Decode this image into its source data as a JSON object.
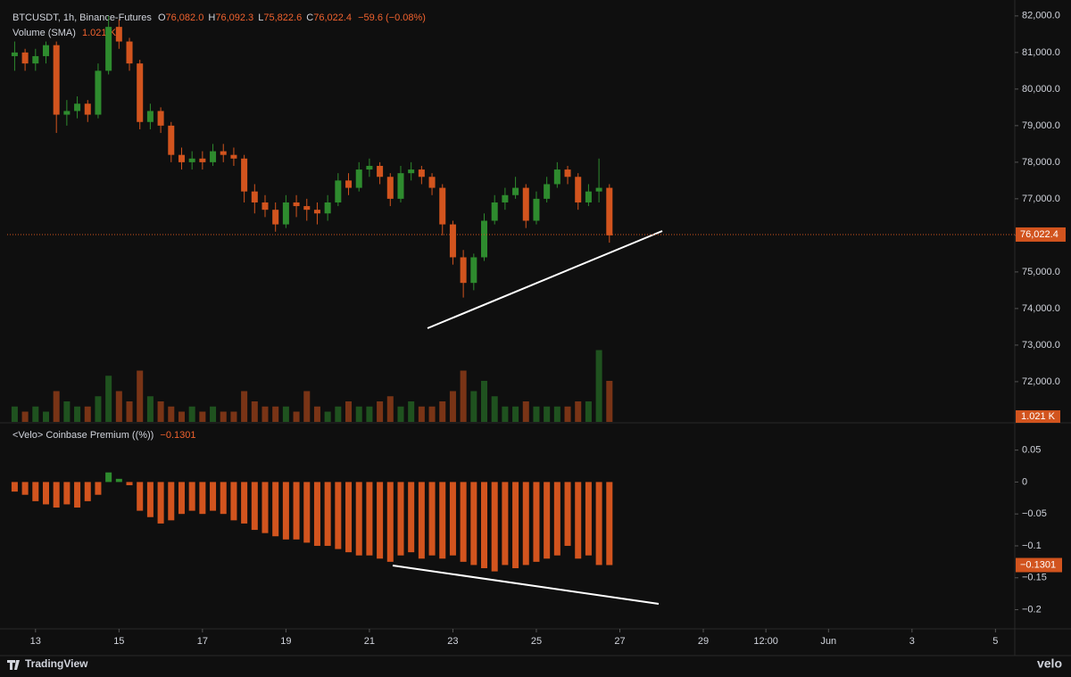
{
  "chart_data": [
    {
      "type": "candlestick",
      "title": "BTCUSDT, 1h, Binance-Futures",
      "legend": [
        [
          "O",
          "76,082.0"
        ],
        [
          "H",
          "76,092.3"
        ],
        [
          "L",
          "75,822.6"
        ],
        [
          "C",
          "76,022.4"
        ]
      ],
      "change": "−59.6 (−0.08%)",
      "up_color": "#2e8b2e",
      "down_color": "#d2541e",
      "last_price": {
        "value": 76022.4,
        "label": "76,022.4"
      },
      "xlim": [
        12.32,
        36.42
      ],
      "xticks": [
        13,
        15,
        17,
        19,
        21,
        23,
        25,
        27,
        29,
        {
          "value": 30.5,
          "label": "12:00"
        },
        {
          "value": 32,
          "label": "Jun"
        },
        {
          "value": 34,
          "label": "3"
        },
        {
          "value": 36,
          "label": "5"
        }
      ],
      "ylim": [
        70900,
        82240
      ],
      "yticks": [
        {
          "value": 72000,
          "label": "72,000.0"
        },
        {
          "value": 73000,
          "label": "73,000.0"
        },
        {
          "value": 74000,
          "label": "74,000.0"
        },
        {
          "value": 75000,
          "label": "75,000.0"
        },
        {
          "value": 76000,
          "label": "76,000.0"
        },
        {
          "value": 77000,
          "label": "77,000.0"
        },
        {
          "value": 78000,
          "label": "78,000.0"
        },
        {
          "value": 79000,
          "label": "79,000.0"
        },
        {
          "value": 80000,
          "label": "80,000.0"
        },
        {
          "value": 81000,
          "label": "81,000.0"
        },
        {
          "value": 82000,
          "label": "82,000.0"
        }
      ],
      "x": [
        12.5,
        12.75,
        13,
        13.25,
        13.5,
        13.75,
        14,
        14.25,
        14.5,
        14.75,
        15,
        15.25,
        15.5,
        15.75,
        16,
        16.25,
        16.5,
        16.75,
        17,
        17.25,
        17.5,
        17.75,
        18,
        18.25,
        18.5,
        18.75,
        19,
        19.25,
        19.5,
        19.75,
        20,
        20.25,
        20.5,
        20.75,
        21,
        21.25,
        21.5,
        21.75,
        22,
        22.25,
        22.5,
        22.75,
        23,
        23.25,
        23.5,
        23.75,
        24,
        24.25,
        24.5,
        24.75,
        25,
        25.25,
        25.5,
        25.75,
        26,
        26.25,
        26.5,
        26.75
      ],
      "open": [
        80900,
        81000,
        80700,
        80900,
        81200,
        79300,
        79400,
        79600,
        79300,
        80500,
        81700,
        81300,
        80700,
        79100,
        79400,
        79000,
        78200,
        78000,
        78100,
        78000,
        78300,
        78200,
        78100,
        77200,
        76900,
        76700,
        76300,
        76900,
        76800,
        76700,
        76600,
        76900,
        77500,
        77300,
        77800,
        77900,
        77600,
        77000,
        77700,
        77800,
        77600,
        77300,
        76300,
        75400,
        74700,
        75400,
        76400,
        76900,
        77100,
        77300,
        76400,
        77000,
        77400,
        77800,
        77600,
        76900,
        77200,
        77300
      ],
      "high": [
        81300,
        81100,
        81100,
        81300,
        81300,
        79700,
        79800,
        79700,
        80700,
        82000,
        81900,
        81400,
        80800,
        79600,
        79500,
        79100,
        78400,
        78300,
        78300,
        78500,
        78500,
        78400,
        78200,
        77400,
        77100,
        76900,
        77100,
        77100,
        77000,
        76900,
        77100,
        77700,
        77700,
        78000,
        78100,
        78000,
        77700,
        77900,
        78000,
        77900,
        77700,
        77400,
        76400,
        75600,
        75500,
        76600,
        77100,
        77300,
        77600,
        77400,
        77200,
        77600,
        78000,
        77900,
        77700,
        77400,
        78100,
        77400
      ],
      "low": [
        80500,
        80500,
        80500,
        80700,
        78800,
        79000,
        79200,
        79100,
        79200,
        80400,
        81100,
        80500,
        78900,
        78900,
        78800,
        78000,
        77800,
        77800,
        77800,
        77900,
        78000,
        77900,
        76900,
        76600,
        76500,
        76100,
        76200,
        76500,
        76400,
        76300,
        76400,
        76800,
        77100,
        77200,
        77600,
        77400,
        76800,
        76900,
        77500,
        77400,
        77100,
        76000,
        75200,
        74300,
        74500,
        75300,
        76300,
        76700,
        77000,
        76200,
        76300,
        76900,
        77300,
        77400,
        76700,
        76800,
        76900,
        75800
      ],
      "close": [
        81000,
        80700,
        80900,
        81200,
        79300,
        79400,
        79600,
        79300,
        80500,
        81700,
        81300,
        80700,
        79100,
        79400,
        79000,
        78200,
        78000,
        78100,
        78000,
        78300,
        78200,
        78100,
        77200,
        76900,
        76700,
        76300,
        76900,
        76800,
        76700,
        76600,
        76900,
        77500,
        77300,
        77800,
        77900,
        77600,
        77000,
        77700,
        77800,
        77600,
        77300,
        76300,
        75400,
        74700,
        75400,
        76400,
        76900,
        77100,
        77300,
        76400,
        77000,
        77400,
        77800,
        77600,
        76900,
        77200,
        77300,
        76000
      ]
    },
    {
      "type": "bar",
      "title": "Volume (SMA)",
      "last_label": "1.021 K",
      "ylim": [
        0,
        20
      ],
      "x": [
        12.5,
        12.75,
        13,
        13.25,
        13.5,
        13.75,
        14,
        14.25,
        14.5,
        14.75,
        15,
        15.25,
        15.5,
        15.75,
        16,
        16.25,
        16.5,
        16.75,
        17,
        17.25,
        17.5,
        17.75,
        18,
        18.25,
        18.5,
        18.75,
        19,
        19.25,
        19.5,
        19.75,
        20,
        20.25,
        20.5,
        20.75,
        21,
        21.25,
        21.5,
        21.75,
        22,
        22.25,
        22.5,
        22.75,
        23,
        23.25,
        23.5,
        23.75,
        24,
        24.25,
        24.5,
        24.75,
        25,
        25.25,
        25.5,
        25.75,
        26,
        26.25,
        26.5,
        26.75
      ],
      "values": [
        3,
        2,
        3,
        2,
        6,
        4,
        3,
        3,
        5,
        9,
        6,
        4,
        10,
        5,
        4,
        3,
        2,
        3,
        2,
        3,
        2,
        2,
        6,
        4,
        3,
        3,
        3,
        2,
        6,
        3,
        2,
        3,
        4,
        3,
        3,
        4,
        5,
        3,
        4,
        3,
        3,
        4,
        6,
        10,
        6,
        8,
        5,
        3,
        3,
        4,
        3,
        3,
        3,
        3,
        4,
        4,
        14,
        8
      ]
    },
    {
      "type": "bar",
      "title": "<Velo> Coinbase Premium ((%))",
      "last": {
        "value": -0.1301,
        "label": "−0.1301"
      },
      "up_color": "#2e8b2e",
      "down_color": "#d2541e",
      "ylim": [
        -0.23,
        0.09
      ],
      "yticks": [
        0.05,
        0,
        {
          "value": -0.05,
          "label": "−0.05"
        },
        {
          "value": -0.1,
          "label": "−0.1"
        },
        {
          "value": -0.15,
          "label": "−0.15"
        },
        {
          "value": -0.2,
          "label": "−0.2"
        }
      ],
      "x": [
        12.5,
        12.75,
        13,
        13.25,
        13.5,
        13.75,
        14,
        14.25,
        14.5,
        14.75,
        15,
        15.25,
        15.5,
        15.75,
        16,
        16.25,
        16.5,
        16.75,
        17,
        17.25,
        17.5,
        17.75,
        18,
        18.25,
        18.5,
        18.75,
        19,
        19.25,
        19.5,
        19.75,
        20,
        20.25,
        20.5,
        20.75,
        21,
        21.25,
        21.5,
        21.75,
        22,
        22.25,
        22.5,
        22.75,
        23,
        23.25,
        23.5,
        23.75,
        24,
        24.25,
        24.5,
        24.75,
        25,
        25.25,
        25.5,
        25.75,
        26,
        26.25,
        26.5,
        26.75
      ],
      "values": [
        -0.015,
        -0.02,
        -0.03,
        -0.035,
        -0.04,
        -0.035,
        -0.04,
        -0.03,
        -0.02,
        0.015,
        0.005,
        -0.005,
        -0.045,
        -0.055,
        -0.065,
        -0.06,
        -0.05,
        -0.045,
        -0.05,
        -0.045,
        -0.05,
        -0.06,
        -0.065,
        -0.075,
        -0.08,
        -0.085,
        -0.09,
        -0.09,
        -0.095,
        -0.1,
        -0.1,
        -0.105,
        -0.11,
        -0.115,
        -0.115,
        -0.12,
        -0.125,
        -0.115,
        -0.11,
        -0.12,
        -0.115,
        -0.12,
        -0.115,
        -0.125,
        -0.13,
        -0.135,
        -0.14,
        -0.13,
        -0.135,
        -0.13,
        -0.125,
        -0.12,
        -0.115,
        -0.1,
        -0.12,
        -0.115,
        -0.13,
        -0.1301
      ]
    }
  ],
  "footer": {
    "brand": "TradingView",
    "source": "velo"
  }
}
